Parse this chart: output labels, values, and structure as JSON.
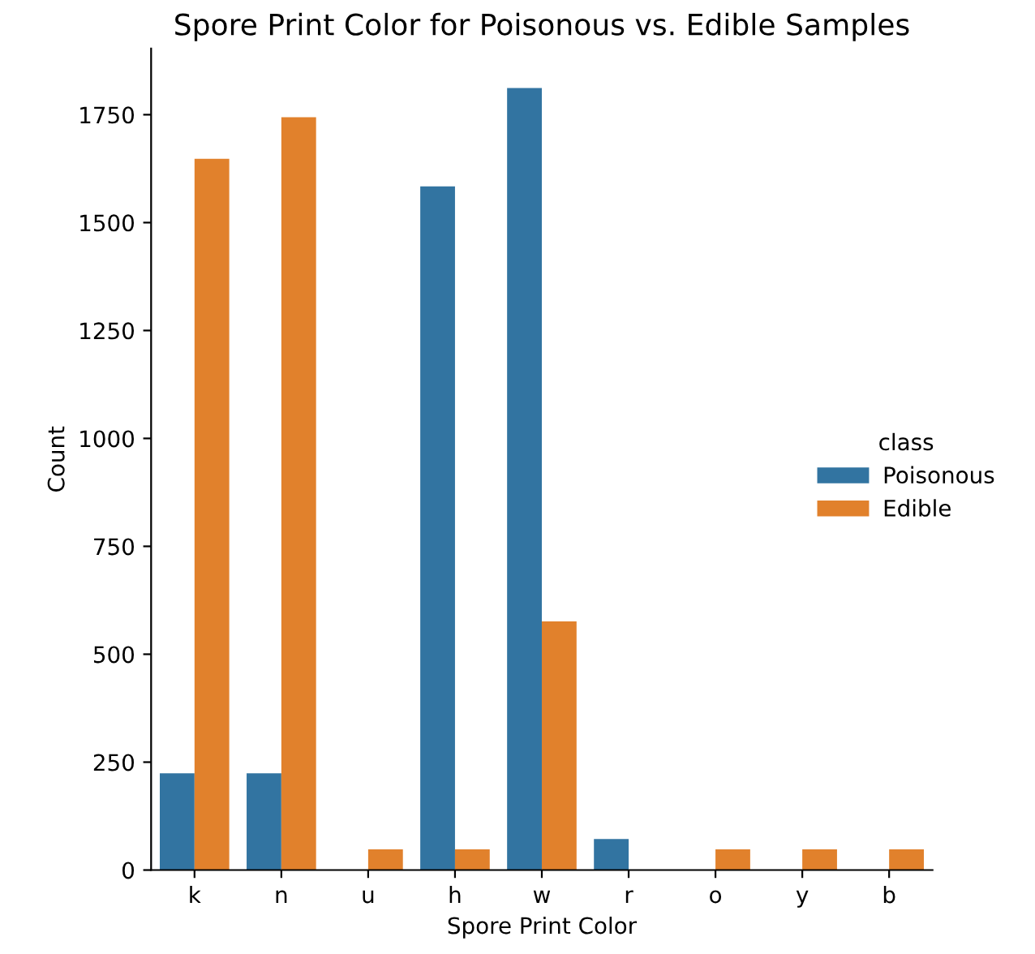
{
  "chart_data": {
    "type": "bar",
    "title": "Spore Print Color for Poisonous vs. Edible Samples",
    "xlabel": "Spore Print Color",
    "ylabel": "Count",
    "legend_title": "class",
    "categories": [
      "k",
      "n",
      "u",
      "h",
      "w",
      "r",
      "o",
      "y",
      "b"
    ],
    "series": [
      {
        "name": "Poisonous",
        "color": "#3274a1",
        "values": [
          224,
          224,
          null,
          1584,
          1812,
          72,
          null,
          null,
          null
        ]
      },
      {
        "name": "Edible",
        "color": "#e1812c",
        "values": [
          1648,
          1744,
          48,
          48,
          576,
          null,
          48,
          48,
          48
        ]
      }
    ],
    "ylim": [
      0,
      1903
    ],
    "yticks": [
      0,
      250,
      500,
      750,
      1000,
      1250,
      1500,
      1750
    ],
    "grid": false,
    "legend": "right"
  }
}
